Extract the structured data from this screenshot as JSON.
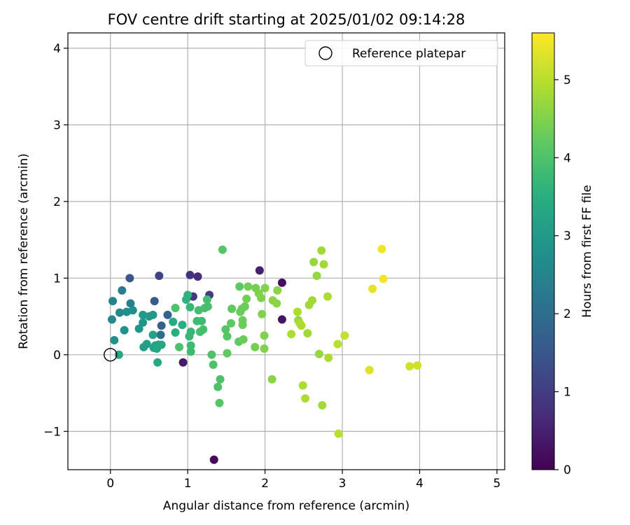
{
  "chart_data": {
    "type": "scatter",
    "title": "FOV centre drift starting at 2025/01/02 09:14:28",
    "xlabel": "Angular distance from reference (arcmin)",
    "ylabel": "Rotation from reference (arcmin)",
    "xlim": [
      -0.55,
      5.1
    ],
    "ylim": [
      -1.5,
      4.2
    ],
    "xticks": [
      0,
      1,
      2,
      3,
      4,
      5
    ],
    "xtick_labels": [
      "0",
      "1",
      "2",
      "3",
      "4",
      "5"
    ],
    "yticks": [
      -1,
      0,
      1,
      2,
      3,
      4
    ],
    "ytick_labels": [
      "−1",
      "0",
      "1",
      "2",
      "3",
      "4"
    ],
    "grid": true,
    "legend": {
      "label": "Reference platepar",
      "placement": "top-right",
      "marker": "open-circle"
    },
    "reference_point": {
      "x": 0,
      "y": 0
    },
    "colorbar": {
      "label": "Hours from first FF file",
      "range": [
        0,
        5.6
      ],
      "ticks": [
        0,
        1,
        2,
        3,
        4,
        5
      ],
      "tick_labels": [
        "0",
        "1",
        "2",
        "3",
        "4",
        "5"
      ],
      "colormap": "viridis"
    },
    "points": [
      {
        "x": 1.34,
        "y": -1.37,
        "c": 0.15
      },
      {
        "x": 2.22,
        "y": 0.94,
        "c": 0.2
      },
      {
        "x": 2.22,
        "y": 0.46,
        "c": 0.3
      },
      {
        "x": 0.94,
        "y": -0.1,
        "c": 0.4
      },
      {
        "x": 1.93,
        "y": 1.1,
        "c": 0.5
      },
      {
        "x": 1.13,
        "y": 1.02,
        "c": 0.7
      },
      {
        "x": 1.03,
        "y": 1.04,
        "c": 0.8
      },
      {
        "x": 1.07,
        "y": 0.76,
        "c": 0.9
      },
      {
        "x": 1.28,
        "y": 0.78,
        "c": 1.0
      },
      {
        "x": 0.63,
        "y": 1.03,
        "c": 1.1
      },
      {
        "x": 0.25,
        "y": 1.0,
        "c": 1.5
      },
      {
        "x": 0.57,
        "y": 0.7,
        "c": 1.6
      },
      {
        "x": 0.66,
        "y": 0.38,
        "c": 1.7
      },
      {
        "x": 0.74,
        "y": 0.52,
        "c": 1.8
      },
      {
        "x": 0.65,
        "y": 0.26,
        "c": 2.0
      },
      {
        "x": 0.15,
        "y": 0.84,
        "c": 2.3
      },
      {
        "x": 0.26,
        "y": 0.67,
        "c": 2.4
      },
      {
        "x": 0.03,
        "y": 0.7,
        "c": 2.5
      },
      {
        "x": 0.02,
        "y": 0.46,
        "c": 2.6
      },
      {
        "x": 0.12,
        "y": 0.55,
        "c": 2.6
      },
      {
        "x": 0.21,
        "y": 0.56,
        "c": 2.7
      },
      {
        "x": 0.29,
        "y": 0.58,
        "c": 2.7
      },
      {
        "x": 0.05,
        "y": 0.19,
        "c": 2.8
      },
      {
        "x": 0.18,
        "y": 0.32,
        "c": 2.8
      },
      {
        "x": 0.37,
        "y": 0.34,
        "c": 2.9
      },
      {
        "x": 0.42,
        "y": 0.42,
        "c": 2.9
      },
      {
        "x": 0.42,
        "y": 0.52,
        "c": 3.0
      },
      {
        "x": 0.5,
        "y": 0.5,
        "c": 3.0
      },
      {
        "x": 0.55,
        "y": 0.52,
        "c": 3.0
      },
      {
        "x": 0.43,
        "y": 0.1,
        "c": 3.1
      },
      {
        "x": 0.47,
        "y": 0.14,
        "c": 3.1
      },
      {
        "x": 0.56,
        "y": 0.09,
        "c": 3.2
      },
      {
        "x": 0.58,
        "y": 0.12,
        "c": 3.2
      },
      {
        "x": 0.62,
        "y": 0.13,
        "c": 3.2
      },
      {
        "x": 0.66,
        "y": 0.13,
        "c": 3.3
      },
      {
        "x": 0.55,
        "y": 0.26,
        "c": 3.2
      },
      {
        "x": 0.61,
        "y": -0.1,
        "c": 3.3
      },
      {
        "x": 0.11,
        "y": 0.0,
        "c": 3.3
      },
      {
        "x": 0.6,
        "y": 0.08,
        "c": 3.3
      },
      {
        "x": 0.81,
        "y": 0.43,
        "c": 3.4
      },
      {
        "x": 0.84,
        "y": 0.29,
        "c": 3.5
      },
      {
        "x": 0.93,
        "y": 0.39,
        "c": 3.5
      },
      {
        "x": 0.98,
        "y": 0.72,
        "c": 3.6
      },
      {
        "x": 1.0,
        "y": 0.78,
        "c": 3.6
      },
      {
        "x": 1.03,
        "y": 0.62,
        "c": 3.7
      },
      {
        "x": 1.02,
        "y": 0.24,
        "c": 3.7
      },
      {
        "x": 1.04,
        "y": 0.3,
        "c": 3.7
      },
      {
        "x": 1.04,
        "y": 0.12,
        "c": 3.8
      },
      {
        "x": 1.04,
        "y": 0.04,
        "c": 3.8
      },
      {
        "x": 1.12,
        "y": 0.44,
        "c": 3.8
      },
      {
        "x": 1.18,
        "y": 0.44,
        "c": 3.8
      },
      {
        "x": 1.16,
        "y": 0.3,
        "c": 3.9
      },
      {
        "x": 1.2,
        "y": 0.33,
        "c": 3.9
      },
      {
        "x": 1.22,
        "y": 0.61,
        "c": 3.9
      },
      {
        "x": 1.25,
        "y": 0.72,
        "c": 3.9
      },
      {
        "x": 1.26,
        "y": 0.63,
        "c": 3.9
      },
      {
        "x": 1.14,
        "y": 0.58,
        "c": 3.9
      },
      {
        "x": 0.84,
        "y": 0.61,
        "c": 4.0
      },
      {
        "x": 0.89,
        "y": 0.1,
        "c": 4.0
      },
      {
        "x": 1.31,
        "y": 0.0,
        "c": 4.0
      },
      {
        "x": 1.33,
        "y": -0.13,
        "c": 4.0
      },
      {
        "x": 1.39,
        "y": -0.42,
        "c": 4.0
      },
      {
        "x": 1.42,
        "y": -0.32,
        "c": 4.0
      },
      {
        "x": 1.41,
        "y": -0.63,
        "c": 4.1
      },
      {
        "x": 1.45,
        "y": 1.37,
        "c": 4.1
      },
      {
        "x": 1.49,
        "y": 0.33,
        "c": 4.1
      },
      {
        "x": 1.51,
        "y": 0.24,
        "c": 4.1
      },
      {
        "x": 1.51,
        "y": 0.02,
        "c": 4.2
      },
      {
        "x": 1.56,
        "y": 0.41,
        "c": 4.2
      },
      {
        "x": 1.57,
        "y": 0.6,
        "c": 4.2
      },
      {
        "x": 1.66,
        "y": 0.17,
        "c": 4.2
      },
      {
        "x": 1.67,
        "y": 0.89,
        "c": 4.2
      },
      {
        "x": 1.68,
        "y": 0.56,
        "c": 4.3
      },
      {
        "x": 1.7,
        "y": 0.6,
        "c": 4.3
      },
      {
        "x": 1.71,
        "y": 0.45,
        "c": 4.3
      },
      {
        "x": 1.71,
        "y": 0.39,
        "c": 4.3
      },
      {
        "x": 1.72,
        "y": 0.2,
        "c": 4.3
      },
      {
        "x": 1.74,
        "y": 0.63,
        "c": 4.3
      },
      {
        "x": 1.76,
        "y": 0.73,
        "c": 4.4
      },
      {
        "x": 1.78,
        "y": 0.89,
        "c": 4.4
      },
      {
        "x": 1.87,
        "y": 0.1,
        "c": 4.4
      },
      {
        "x": 1.88,
        "y": 0.87,
        "c": 4.4
      },
      {
        "x": 1.92,
        "y": 0.8,
        "c": 4.5
      },
      {
        "x": 1.95,
        "y": 0.74,
        "c": 4.5
      },
      {
        "x": 1.96,
        "y": 0.53,
        "c": 4.5
      },
      {
        "x": 1.99,
        "y": 0.25,
        "c": 4.5
      },
      {
        "x": 1.99,
        "y": 0.08,
        "c": 4.5
      },
      {
        "x": 2.0,
        "y": 0.87,
        "c": 4.5
      },
      {
        "x": 2.09,
        "y": -0.32,
        "c": 4.6
      },
      {
        "x": 2.1,
        "y": 0.71,
        "c": 4.6
      },
      {
        "x": 2.15,
        "y": 0.67,
        "c": 4.6
      },
      {
        "x": 2.16,
        "y": 0.84,
        "c": 4.6
      },
      {
        "x": 2.34,
        "y": 0.27,
        "c": 4.9
      },
      {
        "x": 2.42,
        "y": 0.56,
        "c": 4.9
      },
      {
        "x": 2.43,
        "y": 0.45,
        "c": 4.7
      },
      {
        "x": 2.45,
        "y": 0.41,
        "c": 4.9
      },
      {
        "x": 2.47,
        "y": 0.38,
        "c": 4.9
      },
      {
        "x": 2.49,
        "y": -0.4,
        "c": 4.9
      },
      {
        "x": 2.52,
        "y": -0.57,
        "c": 4.9
      },
      {
        "x": 2.55,
        "y": 0.28,
        "c": 4.8
      },
      {
        "x": 2.57,
        "y": 0.65,
        "c": 4.8
      },
      {
        "x": 2.61,
        "y": 0.71,
        "c": 4.8
      },
      {
        "x": 2.63,
        "y": 1.21,
        "c": 4.7
      },
      {
        "x": 2.67,
        "y": 1.03,
        "c": 4.7
      },
      {
        "x": 2.7,
        "y": 0.01,
        "c": 4.7
      },
      {
        "x": 2.73,
        "y": 1.36,
        "c": 4.8
      },
      {
        "x": 2.74,
        "y": -0.66,
        "c": 4.8
      },
      {
        "x": 2.76,
        "y": 1.18,
        "c": 4.8
      },
      {
        "x": 2.81,
        "y": 0.76,
        "c": 4.9
      },
      {
        "x": 2.82,
        "y": -0.04,
        "c": 4.9
      },
      {
        "x": 2.94,
        "y": 0.14,
        "c": 5.0
      },
      {
        "x": 2.95,
        "y": -1.03,
        "c": 5.0
      },
      {
        "x": 3.03,
        "y": 0.25,
        "c": 5.1
      },
      {
        "x": 3.35,
        "y": -0.2,
        "c": 5.3
      },
      {
        "x": 3.39,
        "y": 0.86,
        "c": 5.4
      },
      {
        "x": 3.51,
        "y": 1.38,
        "c": 5.5
      },
      {
        "x": 3.53,
        "y": 0.99,
        "c": 5.5
      },
      {
        "x": 3.87,
        "y": -0.15,
        "c": 5.2
      },
      {
        "x": 3.97,
        "y": -0.14,
        "c": 5.2
      }
    ]
  }
}
